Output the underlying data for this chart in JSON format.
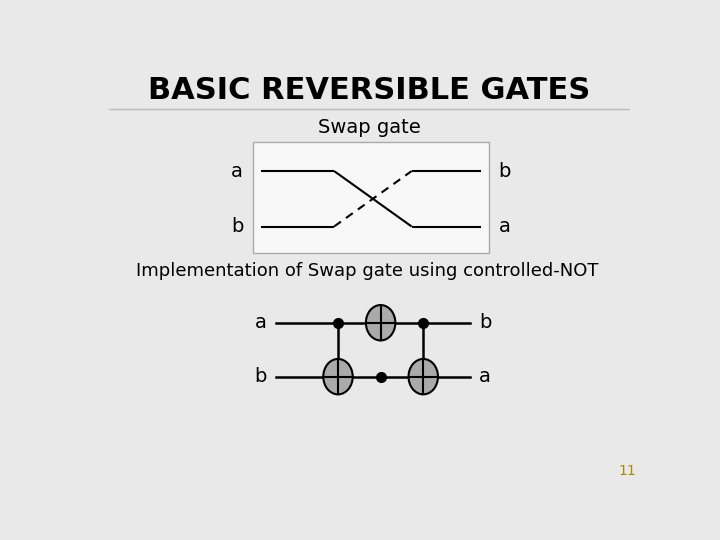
{
  "title": "BASIC REVERSIBLE GATES",
  "bg_color": "#e9e9e9",
  "swap_title": "Swap gate",
  "impl_title": "Implementation of Swap gate using controlled-NOT",
  "page_number": "11",
  "title_fontsize": 22,
  "subtitle_fontsize": 14,
  "impl_fontsize": 13,
  "label_fontsize": 14,
  "page_num_color": "#aa8800",
  "line_color": "#000000",
  "box_bg": "#f8f8f8",
  "circle_fill": "#aaaaaa",
  "circle_edge": "#333333"
}
